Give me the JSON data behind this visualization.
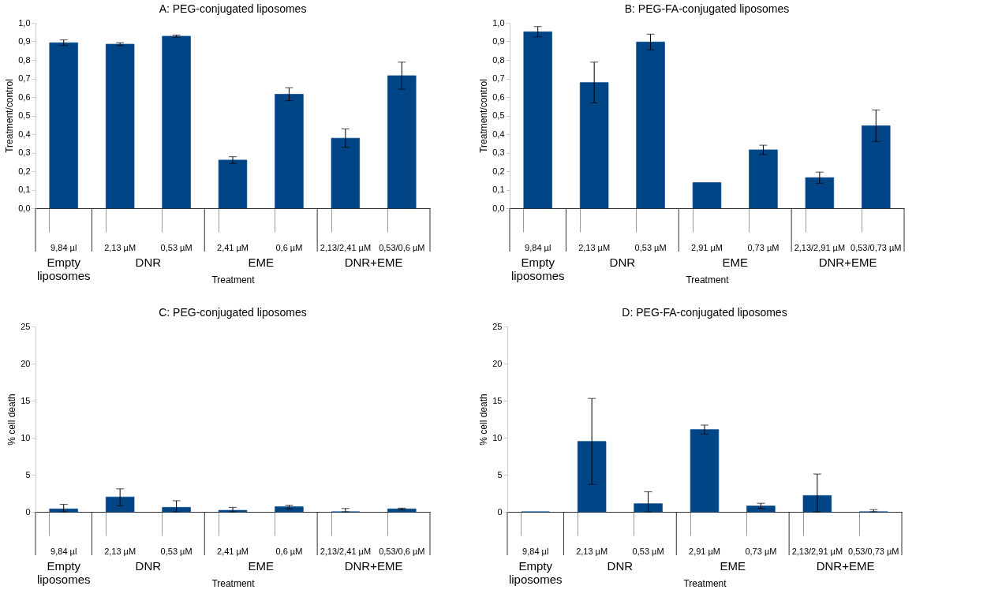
{
  "chart_data": [
    {
      "type": "bar",
      "title": "A: PEG-conjugated liposomes",
      "xlabel": "Treatment",
      "ylabel": "Treatment/control",
      "categories": [
        "9,84 µl",
        "2,13 µM",
        "0,53 µM",
        "2,41 µM",
        "0,6 µM",
        "2,13/2,41 µM",
        "0,53/0,6 µM"
      ],
      "values": [
        0.893,
        0.885,
        0.928,
        0.26,
        0.615,
        0.378,
        0.715
      ],
      "errors": [
        0.015,
        0.008,
        0.006,
        0.018,
        0.035,
        0.05,
        0.073
      ],
      "color": "#004586",
      "ylim": [
        0,
        1
      ],
      "yticks": [
        {
          "value": 0,
          "label": "0,0"
        },
        {
          "value": 0.1,
          "label": "0,1"
        },
        {
          "value": 0.2,
          "label": "0,2"
        },
        {
          "value": 0.3,
          "label": "0,3"
        },
        {
          "value": 0.4,
          "label": "0,4"
        },
        {
          "value": 0.5,
          "label": "0,5"
        },
        {
          "value": 0.6,
          "label": "0,6"
        },
        {
          "value": 0.7,
          "label": "0,7"
        },
        {
          "value": 0.8,
          "label": "0,8"
        },
        {
          "value": 0.9,
          "label": "0,9"
        },
        {
          "value": 1,
          "label": "1,0"
        }
      ],
      "annotations": [
        "Empty\nliposomes",
        "DNR",
        "EME",
        "DNR+EME"
      ],
      "grid": false
    },
    {
      "type": "bar",
      "title": "B: PEG-FA-conjugated liposomes",
      "xlabel": "Treatment",
      "ylabel": "Treatment/control",
      "categories": [
        "9,84 µl",
        "2,13 µM",
        "0,53 µM",
        "2,91 µM",
        "0,73 µM",
        "2,13/2,91 µM",
        "0,53/0,73 µM"
      ],
      "values": [
        0.952,
        0.678,
        0.897,
        0.138,
        0.315,
        0.165,
        0.445
      ],
      "errors": [
        0.028,
        0.11,
        0.042,
        null,
        0.025,
        0.03,
        0.085
      ],
      "color": "#004586",
      "ylim": [
        0,
        1
      ],
      "yticks": [
        {
          "value": 0,
          "label": "0,0"
        },
        {
          "value": 0.1,
          "label": "0,1"
        },
        {
          "value": 0.2,
          "label": "0,2"
        },
        {
          "value": 0.3,
          "label": "0,3"
        },
        {
          "value": 0.4,
          "label": "0,4"
        },
        {
          "value": 0.5,
          "label": "0,5"
        },
        {
          "value": 0.6,
          "label": "0,6"
        },
        {
          "value": 0.7,
          "label": "0,7"
        },
        {
          "value": 0.8,
          "label": "0,8"
        },
        {
          "value": 0.9,
          "label": "0,9"
        },
        {
          "value": 1,
          "label": "1,0"
        }
      ],
      "annotations": [
        "Empty\nliposomes",
        "DNR",
        "EME",
        "DNR+EME"
      ],
      "grid": false
    },
    {
      "type": "bar",
      "title": "C: PEG-conjugated liposomes",
      "xlabel": "Treatment",
      "ylabel": "% cell death",
      "categories": [
        "9,84 µl",
        "2,13 µM",
        "0,53 µM",
        "2,41 µM",
        "0,6 µM",
        "2,13/2,41 µM",
        "0,53/0,6 µM"
      ],
      "values": [
        0.4,
        2,
        0.6,
        0.2,
        0.7,
        0,
        0.4
      ],
      "errors": [
        [
          0,
          1.0
        ],
        [
          0.8,
          3.1
        ],
        [
          0,
          1.5
        ],
        [
          0,
          0.6
        ],
        [
          0.4,
          0.9
        ],
        [
          0,
          0.45
        ],
        [
          0.3,
          0.5
        ]
      ],
      "color": "#004586",
      "ylim": [
        0,
        25
      ],
      "yticks": [
        0,
        5,
        10,
        15,
        20,
        25
      ],
      "annotations": [
        "Empty\nliposomes",
        "DNR",
        "EME",
        "DNR+EME"
      ],
      "grid": false
    },
    {
      "type": "bar",
      "title": "D: PEG-FA-conjugated liposomes",
      "xlabel": "Treatment",
      "ylabel": "% cell death",
      "categories": [
        "9,84 µl",
        "2,13 µM",
        "0,53 µM",
        "2,91 µM",
        "0,73 µM",
        "2,13/2,91 µM",
        "0,53/0,73 µM"
      ],
      "values": [
        0,
        9.5,
        1.1,
        11.1,
        0.8,
        2.2,
        0
      ],
      "errors": [
        null,
        [
          3.7,
          15.3
        ],
        [
          0,
          2.7
        ],
        [
          10.5,
          11.7
        ],
        [
          0.45,
          1.15
        ],
        [
          0,
          5.1
        ],
        [
          0,
          0.3
        ]
      ],
      "color": "#004586",
      "ylim": [
        0,
        25
      ],
      "yticks": [
        0,
        5,
        10,
        15,
        20,
        25
      ],
      "annotations": [
        "Empty\nliposomes",
        "DNR",
        "EME",
        "DNR+EME"
      ],
      "grid": false
    }
  ]
}
